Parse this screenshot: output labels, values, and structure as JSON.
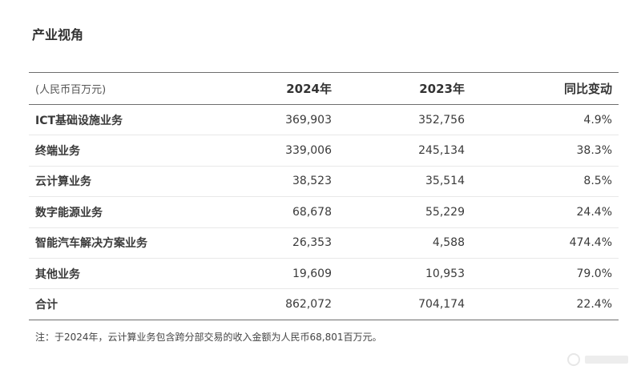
{
  "title": "产业视角",
  "table": {
    "headers": [
      "(人民币百万元)",
      "2024年",
      "2023年",
      "同比变动"
    ],
    "rows": [
      {
        "label": "ICT基础设施业务",
        "y2024": "369,903",
        "y2023": "352,756",
        "change": "4.9%"
      },
      {
        "label": "终端业务",
        "y2024": "339,006",
        "y2023": "245,134",
        "change": "38.3%"
      },
      {
        "label": "云计算业务",
        "y2024": "38,523",
        "y2023": "35,514",
        "change": "8.5%"
      },
      {
        "label": "数字能源业务",
        "y2024": "68,678",
        "y2023": "55,229",
        "change": "24.4%"
      },
      {
        "label": "智能汽车解决方案业务",
        "y2024": "26,353",
        "y2023": "4,588",
        "change": "474.4%"
      },
      {
        "label": "其他业务",
        "y2024": "19,609",
        "y2023": "10,953",
        "change": "79.0%"
      },
      {
        "label": "合计",
        "y2024": "862,072",
        "y2023": "704,174",
        "change": "22.4%"
      }
    ]
  },
  "note": "注：于2024年，云计算业务包含跨分部交易的收入金额为人民币68,801百万元。"
}
